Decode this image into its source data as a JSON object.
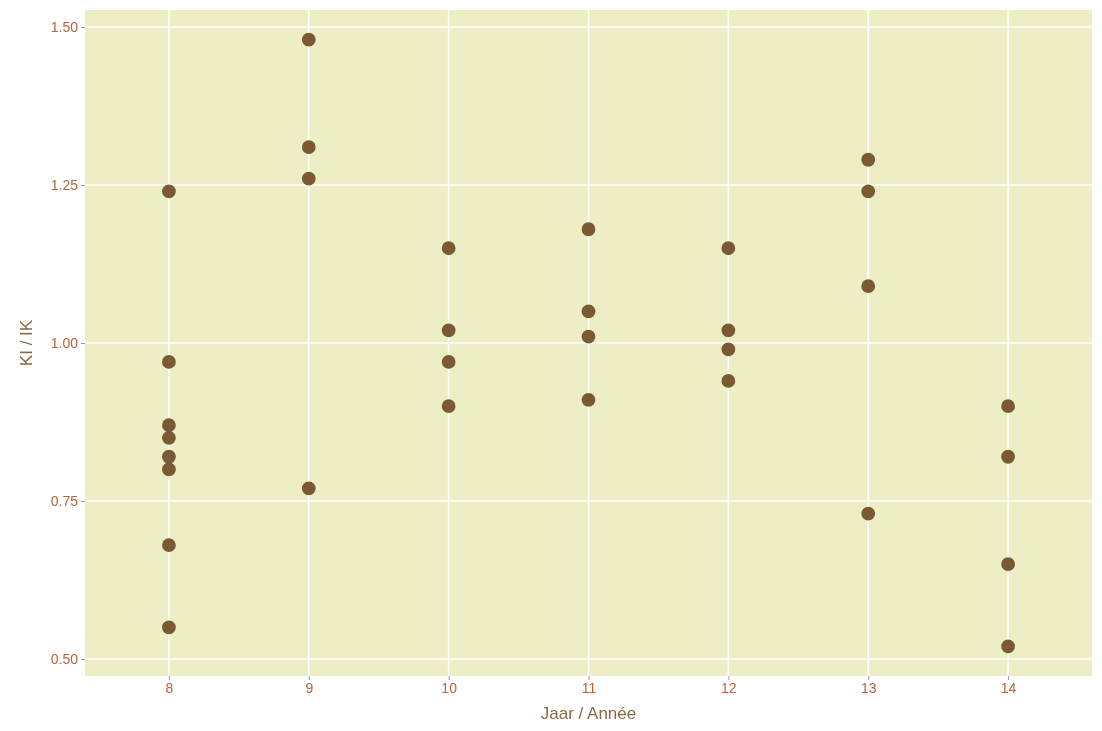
{
  "chart_data": {
    "type": "scatter",
    "xlabel": "Jaar / Année",
    "ylabel": "KI / IK",
    "x": [
      8,
      8,
      8,
      8,
      8,
      8,
      8,
      8,
      9,
      9,
      9,
      9,
      10,
      10,
      10,
      10,
      11,
      11,
      11,
      11,
      12,
      12,
      12,
      12,
      13,
      13,
      13,
      13,
      14,
      14,
      14,
      14
    ],
    "series": [
      {
        "color": "#7a5a32",
        "values": [
          1.24,
          0.97,
          0.87,
          0.85,
          0.82,
          0.8,
          0.68,
          0.55,
          1.48,
          1.31,
          1.26,
          0.77,
          1.15,
          1.02,
          0.97,
          0.9,
          1.18,
          1.05,
          1.01,
          0.91,
          1.15,
          1.02,
          0.99,
          0.94,
          1.29,
          1.24,
          1.09,
          0.73,
          0.9,
          0.82,
          0.65,
          0.52
        ]
      }
    ],
    "xlim": [
      7.4,
      14.6
    ],
    "ylim": [
      0.473,
      1.527
    ],
    "xticks": [
      8,
      9,
      10,
      11,
      12,
      13,
      14
    ],
    "yticks": [
      {
        "value": 0.5,
        "label": "0.50"
      },
      {
        "value": 0.75,
        "label": "0.75"
      },
      {
        "value": 1,
        "label": "1.00"
      },
      {
        "value": 1.25,
        "label": "1.25"
      },
      {
        "value": 1.5,
        "label": "1.50"
      }
    ],
    "grid": true,
    "marker": "circle"
  }
}
